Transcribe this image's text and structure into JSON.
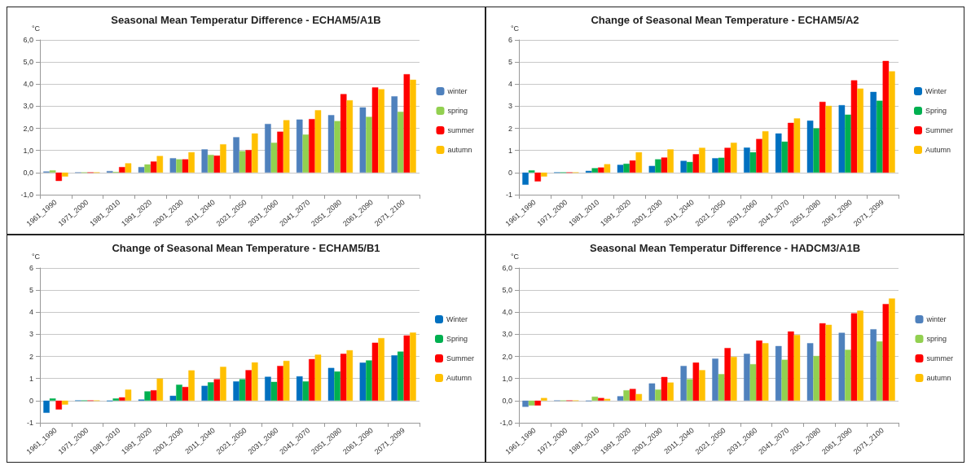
{
  "chart_data": [
    {
      "type": "bar",
      "title": "Seasonal Mean Temperatur Difference - ECHAM5/A1B",
      "ylabel": "°C",
      "categories": [
        "1961_1990",
        "1971_2000",
        "1981_2010",
        "1991_2020",
        "2001_2030",
        "2011_2040",
        "2021_2050",
        "2031_2060",
        "2041_2070",
        "2051_2080",
        "2061_2090",
        "2071_2100"
      ],
      "series": [
        {
          "name": "winter",
          "color": "#4f81bd",
          "values": [
            0.05,
            0,
            0.07,
            0.25,
            0.65,
            1.05,
            1.6,
            2.2,
            2.4,
            2.6,
            2.95,
            3.45
          ]
        },
        {
          "name": "spring",
          "color": "#92d050",
          "values": [
            0.1,
            0,
            0.03,
            0.37,
            0.6,
            0.8,
            0.97,
            1.35,
            1.72,
            2.33,
            2.52,
            2.75
          ]
        },
        {
          "name": "summer",
          "color": "#ff0000",
          "values": [
            -0.38,
            0,
            0.25,
            0.5,
            0.6,
            0.77,
            1.02,
            1.85,
            2.42,
            3.55,
            3.85,
            4.45
          ]
        },
        {
          "name": "autumn",
          "color": "#ffc000",
          "values": [
            -0.18,
            0,
            0.42,
            0.75,
            0.92,
            1.28,
            1.77,
            2.37,
            2.82,
            3.27,
            3.77,
            4.2
          ]
        }
      ],
      "ylim": [
        -1,
        6
      ],
      "yticks": [
        {
          "value": -1,
          "label": "-1,0"
        },
        {
          "value": 0,
          "label": "0,0"
        },
        {
          "value": 1,
          "label": "1,0"
        },
        {
          "value": 2,
          "label": "2,0"
        },
        {
          "value": 3,
          "label": "3,0"
        },
        {
          "value": 4,
          "label": "4,0"
        },
        {
          "value": 5,
          "label": "5,0"
        },
        {
          "value": 6,
          "label": "6,0"
        }
      ],
      "grid": "y",
      "legend": "right"
    },
    {
      "type": "bar",
      "title": "Change of Seasonal Mean Temperature - ECHAM5/A2",
      "ylabel": "°C",
      "categories": [
        "1961_1990",
        "1971_2000",
        "1981_2010",
        "1991_2020",
        "2001_2030",
        "2011_2040",
        "2021_2050",
        "2031_2060",
        "2041_2070",
        "2051_2080",
        "2061_2090",
        "2071_2099"
      ],
      "series": [
        {
          "name": "Winter",
          "color": "#0070c0",
          "values": [
            -0.55,
            0,
            0.08,
            0.35,
            0.3,
            0.53,
            0.65,
            1.13,
            1.77,
            2.35,
            3.05,
            3.65
          ]
        },
        {
          "name": "Spring",
          "color": "#00b050",
          "values": [
            0.1,
            0,
            0.2,
            0.4,
            0.6,
            0.48,
            0.67,
            0.92,
            1.4,
            2.0,
            2.62,
            3.25
          ]
        },
        {
          "name": "Summer",
          "color": "#ff0000",
          "values": [
            -0.4,
            0,
            0.23,
            0.55,
            0.68,
            0.83,
            1.12,
            1.52,
            2.25,
            3.2,
            4.17,
            5.05
          ]
        },
        {
          "name": "Autumn",
          "color": "#ffc000",
          "values": [
            -0.18,
            0,
            0.38,
            0.92,
            1.05,
            1.12,
            1.35,
            1.87,
            2.45,
            3.02,
            3.8,
            4.58
          ]
        }
      ],
      "ylim": [
        -1,
        6
      ],
      "yticks": [
        -1,
        0,
        1,
        2,
        3,
        4,
        5,
        6
      ],
      "grid": "y",
      "legend": "right"
    },
    {
      "type": "bar",
      "title": "Change of Seasonal Mean Temperature - ECHAM5/B1",
      "ylabel": "°C",
      "categories": [
        "1961_1990",
        "1971_2000",
        "1981_2010",
        "1991_2020",
        "2001_2030",
        "2011_2040",
        "2021_2050",
        "2031_2060",
        "2041_2070",
        "2051_2080",
        "2061_2090",
        "2071_2099"
      ],
      "series": [
        {
          "name": "Winter",
          "color": "#0070c0",
          "values": [
            -0.55,
            0,
            -0.02,
            0.05,
            0.22,
            0.67,
            0.87,
            1.08,
            1.1,
            1.48,
            1.72,
            2.05
          ]
        },
        {
          "name": "Spring",
          "color": "#00b050",
          "values": [
            0.1,
            0,
            0.1,
            0.42,
            0.72,
            0.83,
            0.97,
            0.85,
            0.87,
            1.32,
            1.82,
            2.22
          ]
        },
        {
          "name": "Summer",
          "color": "#ff0000",
          "values": [
            -0.4,
            0,
            0.15,
            0.47,
            0.62,
            0.97,
            1.38,
            1.57,
            1.88,
            2.12,
            2.62,
            2.95
          ]
        },
        {
          "name": "Autumn",
          "color": "#ffc000",
          "values": [
            -0.18,
            0,
            0.5,
            1.0,
            1.37,
            1.53,
            1.73,
            1.8,
            2.08,
            2.28,
            2.83,
            3.08
          ]
        }
      ],
      "ylim": [
        -1,
        6
      ],
      "yticks": [
        -1,
        0,
        1,
        2,
        3,
        4,
        5,
        6
      ],
      "grid": "y",
      "legend": "right"
    },
    {
      "type": "bar",
      "title": "Seasonal Mean Temperatur Difference - HADCM3/A1B",
      "ylabel": "°C",
      "categories": [
        "1961_1990",
        "1971_2000",
        "1981_2010",
        "1991_2020",
        "2001_2030",
        "2011_2040",
        "2021_2050",
        "2031_2060",
        "2041_2070",
        "2051_2080",
        "2061_2090",
        "2071_2100"
      ],
      "series": [
        {
          "name": "winter",
          "color": "#4f81bd",
          "values": [
            -0.28,
            0,
            -0.02,
            0.2,
            0.78,
            1.57,
            1.9,
            2.12,
            2.47,
            2.6,
            3.07,
            3.23
          ]
        },
        {
          "name": "spring",
          "color": "#92d050",
          "values": [
            -0.22,
            0,
            0.18,
            0.47,
            0.5,
            0.97,
            1.2,
            1.65,
            1.85,
            2.02,
            2.3,
            2.68
          ]
        },
        {
          "name": "summer",
          "color": "#ff0000",
          "values": [
            -0.22,
            0,
            0.12,
            0.53,
            1.07,
            1.72,
            2.38,
            2.72,
            3.13,
            3.5,
            3.95,
            4.37
          ]
        },
        {
          "name": "autumn",
          "color": "#ffc000",
          "values": [
            0.12,
            0,
            0.08,
            0.3,
            0.82,
            1.38,
            1.98,
            2.6,
            2.97,
            3.43,
            4.07,
            4.62
          ]
        }
      ],
      "ylim": [
        -1,
        6
      ],
      "yticks": [
        {
          "value": -1,
          "label": "-1,0"
        },
        {
          "value": 0,
          "label": "0,0"
        },
        {
          "value": 1,
          "label": "1,0"
        },
        {
          "value": 2,
          "label": "2,0"
        },
        {
          "value": 3,
          "label": "3,0"
        },
        {
          "value": 4,
          "label": "4,0"
        },
        {
          "value": 5,
          "label": "5,0"
        },
        {
          "value": 6,
          "label": "6,0"
        }
      ],
      "grid": "y",
      "legend": "right"
    }
  ]
}
